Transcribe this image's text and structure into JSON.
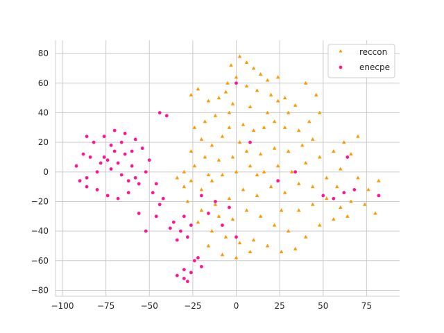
{
  "chart_data": {
    "type": "scatter",
    "title": "",
    "xlabel": "",
    "ylabel": "",
    "xlim": [
      -104,
      94
    ],
    "ylim": [
      -84,
      89
    ],
    "grid": true,
    "legend_position": "top-right",
    "x_ticks": [
      -100,
      -75,
      -50,
      -25,
      0,
      25,
      50,
      75
    ],
    "y_ticks": [
      -80,
      -60,
      -40,
      -20,
      0,
      20,
      40,
      60,
      80
    ],
    "x_tick_labels": [
      "−100",
      "−75",
      "−50",
      "−25",
      "0",
      "25",
      "50",
      "75"
    ],
    "y_tick_labels": [
      "−80",
      "−60",
      "−40",
      "−20",
      "0",
      "20",
      "40",
      "60",
      "80"
    ],
    "series": [
      {
        "name": "reccon",
        "marker": "triangle",
        "color": "#ff9900",
        "points": [
          [
            2,
            78
          ],
          [
            6,
            74
          ],
          [
            -3,
            72
          ],
          [
            10,
            70
          ],
          [
            14,
            66
          ],
          [
            0,
            64
          ],
          [
            -5,
            60
          ],
          [
            6,
            58
          ],
          [
            12,
            55
          ],
          [
            20,
            52
          ],
          [
            24,
            48
          ],
          [
            28,
            50
          ],
          [
            34,
            45
          ],
          [
            30,
            40
          ],
          [
            18,
            40
          ],
          [
            8,
            44
          ],
          [
            -2,
            46
          ],
          [
            -10,
            50
          ],
          [
            -16,
            48
          ],
          [
            -22,
            56
          ],
          [
            -26,
            52
          ],
          [
            -12,
            38
          ],
          [
            -18,
            34
          ],
          [
            -24,
            30
          ],
          [
            -20,
            22
          ],
          [
            -14,
            18
          ],
          [
            -8,
            24
          ],
          [
            -4,
            30
          ],
          [
            4,
            32
          ],
          [
            10,
            28
          ],
          [
            16,
            30
          ],
          [
            22,
            34
          ],
          [
            28,
            30
          ],
          [
            36,
            28
          ],
          [
            42,
            34
          ],
          [
            48,
            40
          ],
          [
            44,
            22
          ],
          [
            38,
            18
          ],
          [
            30,
            14
          ],
          [
            22,
            16
          ],
          [
            14,
            12
          ],
          [
            6,
            14
          ],
          [
            -2,
            10
          ],
          [
            -10,
            8
          ],
          [
            -18,
            10
          ],
          [
            -24,
            4
          ],
          [
            -30,
            0
          ],
          [
            -26,
            -6
          ],
          [
            -20,
            -12
          ],
          [
            -14,
            -6
          ],
          [
            -8,
            -2
          ],
          [
            0,
            0
          ],
          [
            8,
            4
          ],
          [
            16,
            0
          ],
          [
            24,
            4
          ],
          [
            32,
            0
          ],
          [
            40,
            6
          ],
          [
            48,
            10
          ],
          [
            56,
            14
          ],
          [
            62,
            20
          ],
          [
            66,
            12
          ],
          [
            70,
            24
          ],
          [
            60,
            2
          ],
          [
            52,
            -4
          ],
          [
            44,
            -10
          ],
          [
            36,
            -8
          ],
          [
            28,
            -14
          ],
          [
            20,
            -10
          ],
          [
            12,
            -16
          ],
          [
            4,
            -12
          ],
          [
            -4,
            -18
          ],
          [
            -12,
            -22
          ],
          [
            -20,
            -26
          ],
          [
            -28,
            -20
          ],
          [
            -22,
            -34
          ],
          [
            -14,
            -40
          ],
          [
            -6,
            -44
          ],
          [
            2,
            -48
          ],
          [
            10,
            -46
          ],
          [
            18,
            -50
          ],
          [
            26,
            -54
          ],
          [
            30,
            -40
          ],
          [
            22,
            -36
          ],
          [
            14,
            -30
          ],
          [
            6,
            -26
          ],
          [
            -2,
            -32
          ],
          [
            -10,
            -30
          ],
          [
            -16,
            -50
          ],
          [
            -8,
            -56
          ],
          [
            0,
            -58
          ],
          [
            8,
            -54
          ],
          [
            36,
            -26
          ],
          [
            44,
            -22
          ],
          [
            52,
            -18
          ],
          [
            60,
            -24
          ],
          [
            66,
            -20
          ],
          [
            74,
            -22
          ],
          [
            80,
            -28
          ],
          [
            76,
            -12
          ],
          [
            70,
            -4
          ],
          [
            64,
            -30
          ],
          [
            56,
            -32
          ],
          [
            48,
            -36
          ],
          [
            40,
            -44
          ],
          [
            34,
            -52
          ],
          [
            -4,
            40
          ],
          [
            2,
            20
          ],
          [
            -16,
            -2
          ],
          [
            12,
            -2
          ],
          [
            26,
            -26
          ],
          [
            40,
            60
          ],
          [
            46,
            52
          ],
          [
            -30,
            -10
          ],
          [
            -34,
            -4
          ],
          [
            -26,
            14
          ],
          [
            82,
            -6
          ],
          [
            58,
            -10
          ],
          [
            18,
            62
          ],
          [
            24,
            64
          ],
          [
            -6,
            54
          ]
        ]
      },
      {
        "name": "enecpe",
        "marker": "circle",
        "color": "#ff1493",
        "points": [
          [
            -88,
            12
          ],
          [
            -92,
            4
          ],
          [
            -86,
            -4
          ],
          [
            -80,
            -12
          ],
          [
            -74,
            -16
          ],
          [
            -68,
            -18
          ],
          [
            -62,
            -14
          ],
          [
            -56,
            -8
          ],
          [
            -52,
            0
          ],
          [
            -50,
            8
          ],
          [
            -54,
            16
          ],
          [
            -58,
            22
          ],
          [
            -64,
            26
          ],
          [
            -70,
            28
          ],
          [
            -76,
            24
          ],
          [
            -82,
            20
          ],
          [
            -84,
            10
          ],
          [
            -78,
            6
          ],
          [
            -72,
            2
          ],
          [
            -66,
            -2
          ],
          [
            -60,
            4
          ],
          [
            -64,
            12
          ],
          [
            -70,
            14
          ],
          [
            -76,
            10
          ],
          [
            -72,
            18
          ],
          [
            -66,
            20
          ],
          [
            -60,
            14
          ],
          [
            -58,
            -4
          ],
          [
            -80,
            0
          ],
          [
            -86,
            -10
          ],
          [
            -74,
            8
          ],
          [
            -68,
            6
          ],
          [
            -62,
            -6
          ],
          [
            -90,
            -6
          ],
          [
            -48,
            -14
          ],
          [
            -44,
            -22
          ],
          [
            -46,
            -30
          ],
          [
            -42,
            -18
          ],
          [
            -44,
            40
          ],
          [
            -40,
            38
          ],
          [
            -36,
            -34
          ],
          [
            -32,
            -40
          ],
          [
            -28,
            -44
          ],
          [
            -26,
            -36
          ],
          [
            -30,
            -30
          ],
          [
            -34,
            -46
          ],
          [
            -38,
            -38
          ],
          [
            -24,
            -60
          ],
          [
            -20,
            -64
          ],
          [
            -26,
            -68
          ],
          [
            -30,
            -72
          ],
          [
            -34,
            -70
          ],
          [
            -28,
            -74
          ],
          [
            -22,
            -58
          ],
          [
            -30,
            -66
          ],
          [
            0,
            60
          ],
          [
            8,
            20
          ],
          [
            -12,
            -20
          ],
          [
            -4,
            -24
          ],
          [
            -20,
            -16
          ],
          [
            -16,
            -28
          ],
          [
            -8,
            -36
          ],
          [
            0,
            -44
          ],
          [
            24,
            -6
          ],
          [
            34,
            0
          ],
          [
            50,
            -16
          ],
          [
            56,
            -18
          ],
          [
            62,
            -14
          ],
          [
            68,
            -12
          ],
          [
            82,
            -16
          ],
          [
            64,
            10
          ],
          [
            -52,
            -40
          ],
          [
            -56,
            -28
          ],
          [
            -46,
            -8
          ],
          [
            -86,
            24
          ]
        ]
      }
    ]
  }
}
